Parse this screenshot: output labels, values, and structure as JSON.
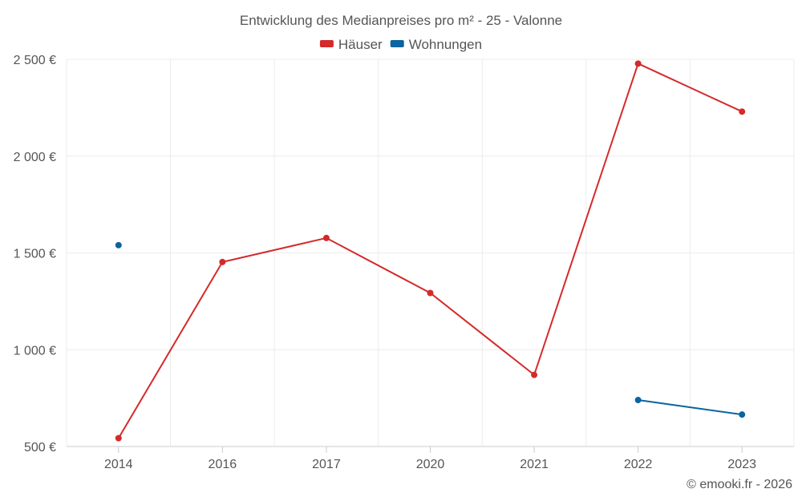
{
  "chart_data": {
    "type": "line",
    "title": "Entwicklung des Medianpreises pro m² - 25 - Valonne",
    "categories": [
      "2014",
      "2016",
      "2017",
      "2020",
      "2021",
      "2022",
      "2023"
    ],
    "ylim": [
      500,
      2500
    ],
    "yticks": [
      500,
      1000,
      1500,
      2000,
      2500
    ],
    "ytick_labels": [
      "500 €",
      "1 000 €",
      "1 500 €",
      "2 000 €",
      "2 500 €"
    ],
    "xlabel": "",
    "ylabel": "",
    "legend_position": "top-center",
    "grid": true,
    "series": [
      {
        "name": "Häuser",
        "color": "#d42a2a",
        "values": [
          543,
          1453,
          1577,
          1293,
          870,
          2478,
          2230
        ]
      },
      {
        "name": "Wohnungen",
        "color": "#0a649f",
        "values": [
          1540,
          null,
          null,
          null,
          null,
          740,
          665
        ]
      }
    ]
  },
  "credit": "© emooki.fr - 2026"
}
